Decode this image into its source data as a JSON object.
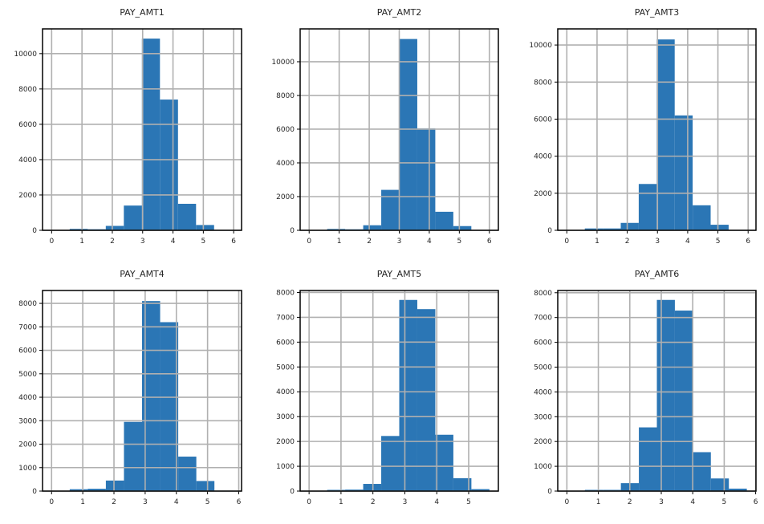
{
  "chart_data": [
    {
      "type": "bar",
      "subtype": "histogram",
      "title": "PAY_AMT1",
      "bin_range": [
        0,
        5.95
      ],
      "counts": [
        10,
        80,
        60,
        250,
        1400,
        10850,
        7400,
        1500,
        300,
        20
      ],
      "xlim": [
        -0.3,
        6.26
      ],
      "ylim": [
        0,
        11400
      ],
      "xticks": [
        0,
        1,
        2,
        3,
        4,
        5,
        6
      ],
      "yticks": [
        0,
        2000,
        4000,
        6000,
        8000,
        10000
      ],
      "grid": true,
      "color": "#2b76b5"
    },
    {
      "type": "bar",
      "subtype": "histogram",
      "title": "PAY_AMT2",
      "bin_range": [
        0,
        6.0
      ],
      "counts": [
        10,
        80,
        60,
        300,
        2400,
        11350,
        6050,
        1100,
        250,
        10
      ],
      "xlim": [
        -0.3,
        6.3
      ],
      "ylim": [
        0,
        11950
      ],
      "xticks": [
        0,
        1,
        2,
        3,
        4,
        5,
        6
      ],
      "yticks": [
        0,
        2000,
        4000,
        6000,
        8000,
        10000
      ],
      "grid": true,
      "color": "#2b76b5"
    },
    {
      "type": "bar",
      "subtype": "histogram",
      "title": "PAY_AMT3",
      "bin_range": [
        0,
        5.95
      ],
      "counts": [
        10,
        100,
        100,
        400,
        2500,
        10300,
        6200,
        1350,
        300,
        10
      ],
      "xlim": [
        -0.3,
        6.26
      ],
      "ylim": [
        0,
        10870
      ],
      "xticks": [
        0,
        1,
        2,
        3,
        4,
        5,
        6
      ],
      "yticks": [
        0,
        2000,
        4000,
        6000,
        8000,
        10000
      ],
      "grid": true,
      "color": "#2b76b5"
    },
    {
      "type": "bar",
      "subtype": "histogram",
      "title": "PAY_AMT4",
      "bin_range": [
        0,
        5.8
      ],
      "counts": [
        10,
        80,
        100,
        450,
        2950,
        8100,
        7200,
        1470,
        430,
        20
      ],
      "xlim": [
        -0.29,
        6.09
      ],
      "ylim": [
        0,
        8550
      ],
      "xticks": [
        0,
        1,
        2,
        3,
        4,
        5,
        6
      ],
      "yticks": [
        0,
        1000,
        2000,
        3000,
        4000,
        5000,
        6000,
        7000,
        8000
      ],
      "grid": true,
      "color": "#2b76b5"
    },
    {
      "type": "bar",
      "subtype": "histogram",
      "title": "PAY_AMT5",
      "bin_range": [
        0,
        5.65
      ],
      "counts": [
        10,
        50,
        60,
        290,
        2220,
        7700,
        7330,
        2270,
        520,
        80
      ],
      "xlim": [
        -0.28,
        5.93
      ],
      "ylim": [
        0,
        8080
      ],
      "xticks": [
        0,
        1,
        2,
        3,
        4,
        5
      ],
      "yticks": [
        0,
        1000,
        2000,
        3000,
        4000,
        5000,
        6000,
        7000,
        8000
      ],
      "grid": true,
      "color": "#2b76b5"
    },
    {
      "type": "bar",
      "subtype": "histogram",
      "title": "PAY_AMT6",
      "bin_range": [
        0,
        5.72
      ],
      "counts": [
        10,
        50,
        50,
        320,
        2570,
        7710,
        7280,
        1570,
        510,
        100
      ],
      "xlim": [
        -0.29,
        6.01
      ],
      "ylim": [
        0,
        8090
      ],
      "xticks": [
        0,
        1,
        2,
        3,
        4,
        5,
        6
      ],
      "yticks": [
        0,
        1000,
        2000,
        3000,
        4000,
        5000,
        6000,
        7000,
        8000
      ],
      "grid": true,
      "color": "#2b76b5"
    }
  ]
}
